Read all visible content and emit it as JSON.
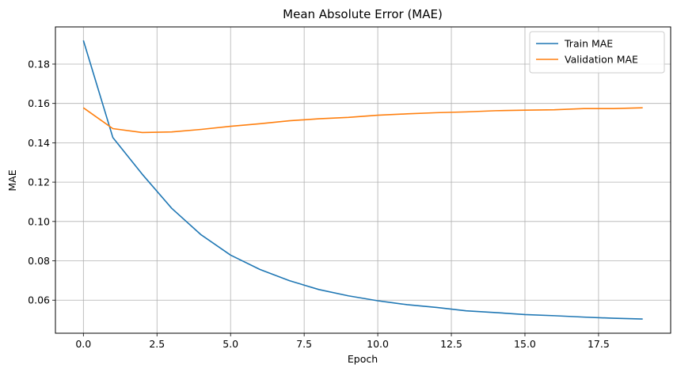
{
  "chart_data": {
    "type": "line",
    "title": "Mean Absolute Error (MAE)",
    "xlabel": "Epoch",
    "ylabel": "MAE",
    "xlim": [
      -0.95,
      19.95
    ],
    "ylim": [
      0.0432,
      0.1989
    ],
    "xticks": [
      0.0,
      2.5,
      5.0,
      7.5,
      10.0,
      12.5,
      15.0,
      17.5
    ],
    "xtick_labels": [
      "0.0",
      "2.5",
      "5.0",
      "7.5",
      "10.0",
      "12.5",
      "15.0",
      "17.5"
    ],
    "yticks": [
      0.06,
      0.08,
      0.1,
      0.12,
      0.14,
      0.16,
      0.18
    ],
    "ytick_labels": [
      "0.06",
      "0.08",
      "0.10",
      "0.12",
      "0.14",
      "0.16",
      "0.18"
    ],
    "grid": true,
    "legend_position": "top-right",
    "x": [
      0,
      1,
      2,
      3,
      4,
      5,
      6,
      7,
      8,
      9,
      10,
      11,
      12,
      13,
      14,
      15,
      16,
      17,
      18,
      19
    ],
    "series": [
      {
        "name": "Train MAE",
        "color": "#1f77b4",
        "values": [
          0.192,
          0.1427,
          0.124,
          0.1067,
          0.0932,
          0.0829,
          0.0756,
          0.0699,
          0.0654,
          0.0622,
          0.0597,
          0.0577,
          0.0563,
          0.0546,
          0.0537,
          0.0527,
          0.0521,
          0.0514,
          0.0508,
          0.0504
        ]
      },
      {
        "name": "Validation MAE",
        "color": "#ff7f0e",
        "values": [
          0.1578,
          0.1472,
          0.1452,
          0.1455,
          0.1468,
          0.1484,
          0.1497,
          0.1512,
          0.1522,
          0.1529,
          0.154,
          0.1547,
          0.1553,
          0.1557,
          0.1563,
          0.1566,
          0.1568,
          0.1574,
          0.1574,
          0.1578
        ]
      }
    ]
  }
}
